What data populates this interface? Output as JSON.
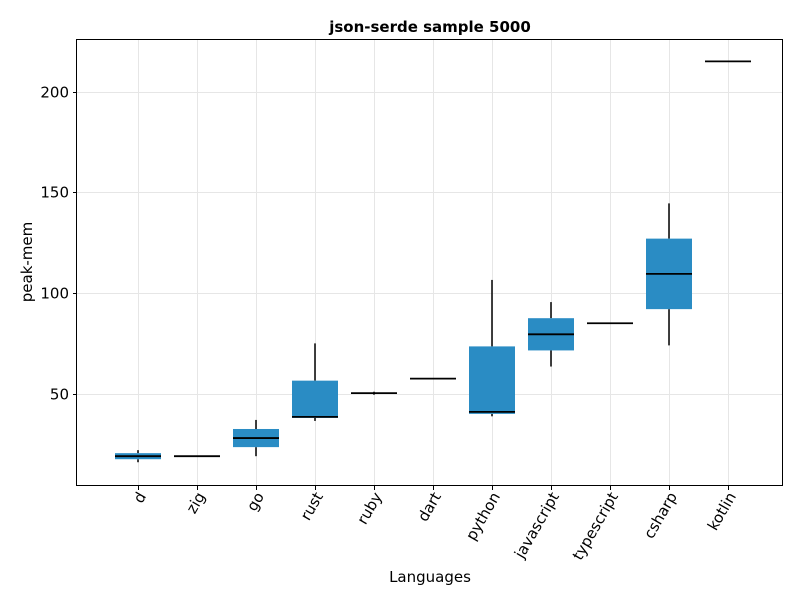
{
  "chart_data": {
    "type": "box",
    "title": "json-serde sample 5000",
    "xlabel": "Languages",
    "ylabel": "peak-mem",
    "ylim": [
      4.2,
      225.6
    ],
    "yticks": [
      50,
      100,
      150,
      200
    ],
    "grid": true,
    "categories": [
      "d",
      "zig",
      "go",
      "rust",
      "ruby",
      "dart",
      "python",
      "javascript",
      "typescript",
      "csharp",
      "kotlin"
    ],
    "boxes": [
      {
        "category": "d",
        "min": 16,
        "q1": 17.5,
        "median": 19,
        "q3": 20.5,
        "max": 22
      },
      {
        "category": "zig",
        "min": 19,
        "q1": 19,
        "median": 19,
        "q3": 19,
        "max": 19
      },
      {
        "category": "go",
        "min": 19,
        "q1": 23.5,
        "median": 28,
        "q3": 32.5,
        "max": 37
      },
      {
        "category": "rust",
        "min": 36.5,
        "q1": 38,
        "median": 38.5,
        "q3": 56.5,
        "max": 75
      },
      {
        "category": "ruby",
        "min": 49.5,
        "q1": 50,
        "median": 50.3,
        "q3": 50.5,
        "max": 51
      },
      {
        "category": "dart",
        "min": 57.5,
        "q1": 57.5,
        "median": 57.5,
        "q3": 57.5,
        "max": 57.5
      },
      {
        "category": "python",
        "min": 38.8,
        "q1": 40,
        "median": 41,
        "q3": 73.5,
        "max": 106.5
      },
      {
        "category": "javascript",
        "min": 63.5,
        "q1": 71.5,
        "median": 79.5,
        "q3": 87.5,
        "max": 95.5
      },
      {
        "category": "typescript",
        "min": 85,
        "q1": 85,
        "median": 85,
        "q3": 85,
        "max": 85
      },
      {
        "category": "csharp",
        "min": 74,
        "q1": 92,
        "median": 109.5,
        "q3": 127,
        "max": 144.5
      },
      {
        "category": "kotlin",
        "min": 215,
        "q1": 215,
        "median": 215,
        "q3": 215,
        "max": 215
      }
    ],
    "colors": {
      "box": "#2a8cc4",
      "whisker": "#000000",
      "median": "#000000",
      "grid": "#e6e6e6",
      "frame": "#000000"
    }
  }
}
